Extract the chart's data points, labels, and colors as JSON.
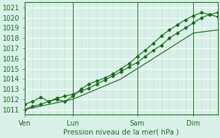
{
  "xlabel": "Pression niveau de la mer( hPa )",
  "bg_color": "#cce8d8",
  "plot_bg_color": "#d8f0e8",
  "line_color": "#1a6b1a",
  "grid_major_color": "#ffffff",
  "grid_minor_color": "#c0dcc8",
  "xlim": [
    0,
    72
  ],
  "ylim": [
    1010.5,
    1021.5
  ],
  "yticks": [
    1011,
    1012,
    1013,
    1014,
    1015,
    1016,
    1017,
    1018,
    1019,
    1020,
    1021
  ],
  "xtick_positions": [
    0,
    18,
    42,
    63
  ],
  "xtick_labels": [
    "Ven",
    "Lun",
    "Sam",
    "Dim"
  ],
  "vline_positions": [
    0,
    18,
    42,
    63
  ],
  "line1_x": [
    0,
    3,
    6,
    9,
    12,
    15,
    18,
    21,
    24,
    27,
    30,
    33,
    36,
    39,
    42,
    45,
    48,
    51,
    54,
    57,
    60,
    63,
    66,
    69,
    72
  ],
  "line1_y": [
    1011.0,
    1011.3,
    1011.5,
    1011.8,
    1012.1,
    1012.3,
    1012.5,
    1012.8,
    1013.1,
    1013.5,
    1013.9,
    1014.3,
    1014.7,
    1015.2,
    1015.6,
    1016.2,
    1016.8,
    1017.3,
    1018.0,
    1018.5,
    1019.0,
    1019.5,
    1020.0,
    1020.3,
    1020.5
  ],
  "line2_x": [
    0,
    3,
    6,
    9,
    12,
    15,
    18,
    21,
    24,
    27,
    30,
    33,
    36,
    39,
    42,
    45,
    48,
    51,
    54,
    57,
    60,
    63,
    66,
    69,
    72
  ],
  "line2_y": [
    1011.5,
    1011.8,
    1012.2,
    1011.8,
    1012.0,
    1011.8,
    1012.3,
    1013.0,
    1013.5,
    1013.8,
    1014.1,
    1014.5,
    1015.0,
    1015.5,
    1016.2,
    1016.8,
    1017.5,
    1018.2,
    1018.8,
    1019.3,
    1019.8,
    1020.2,
    1020.5,
    1020.3,
    1020.1
  ],
  "line3_x": [
    0,
    9,
    18,
    27,
    36,
    45,
    54,
    63,
    72
  ],
  "line3_y": [
    1011.0,
    1011.5,
    1012.0,
    1013.0,
    1014.0,
    1015.5,
    1017.0,
    1018.5,
    1018.8
  ]
}
